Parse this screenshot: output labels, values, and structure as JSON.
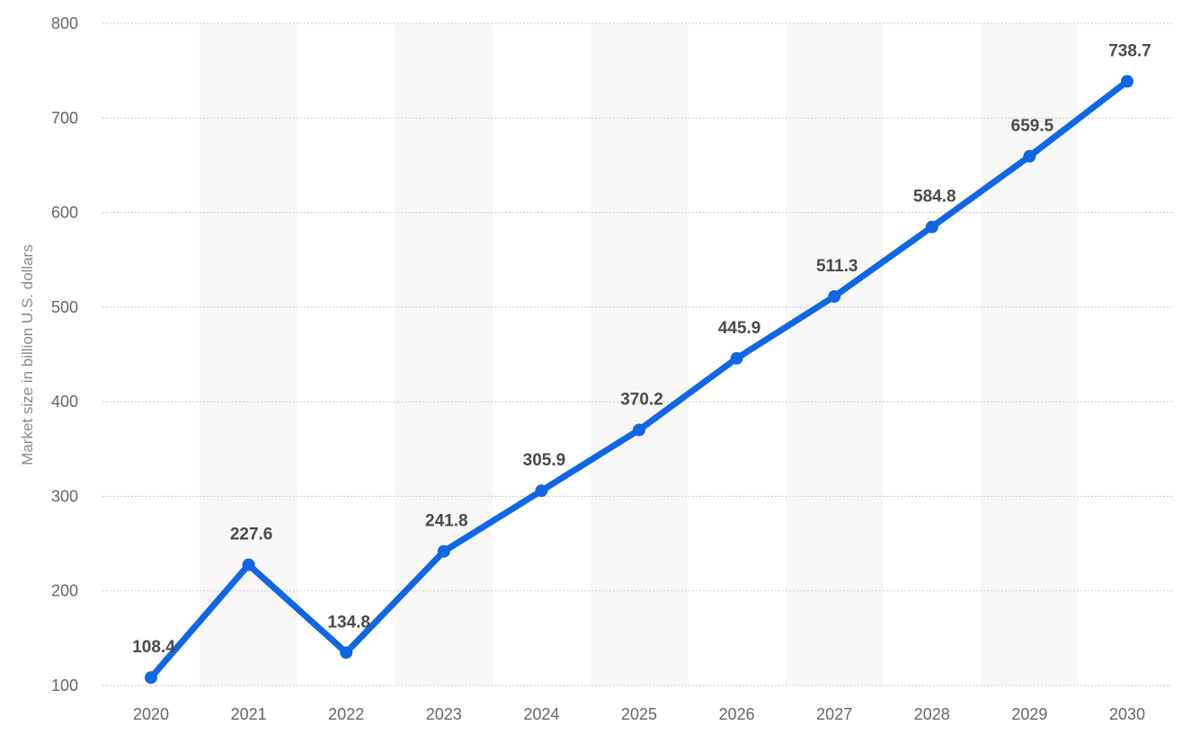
{
  "chart_data": {
    "type": "line",
    "title": "",
    "xlabel": "",
    "ylabel": "Market size in billion U.S. dollars",
    "categories": [
      "2020",
      "2021",
      "2022",
      "2023",
      "2024",
      "2025",
      "2026",
      "2027",
      "2028",
      "2029",
      "2030"
    ],
    "series": [
      {
        "values": [
          108.4,
          227.6,
          134.8,
          241.8,
          305.9,
          370.2,
          445.9,
          511.3,
          584.8,
          659.5,
          738.7
        ],
        "color": "#0f66e6"
      }
    ],
    "data_labels": [
      "108.4",
      "227.6",
      "134.8",
      "241.8",
      "305.9",
      "370.2",
      "445.9",
      "511.3",
      "584.8",
      "659.5",
      "738.7"
    ],
    "yticks": [
      100,
      200,
      300,
      400,
      500,
      600,
      700,
      800
    ],
    "ylim": [
      100,
      800
    ],
    "grid": true,
    "legend": "none",
    "colors": {
      "line": "#0f66e6",
      "band": "#f7f7f7",
      "grid": "#c8c8c8",
      "tick_text": "#666666",
      "axis_title": "#8a8a8a",
      "data_label": "#4a4a4a"
    }
  }
}
